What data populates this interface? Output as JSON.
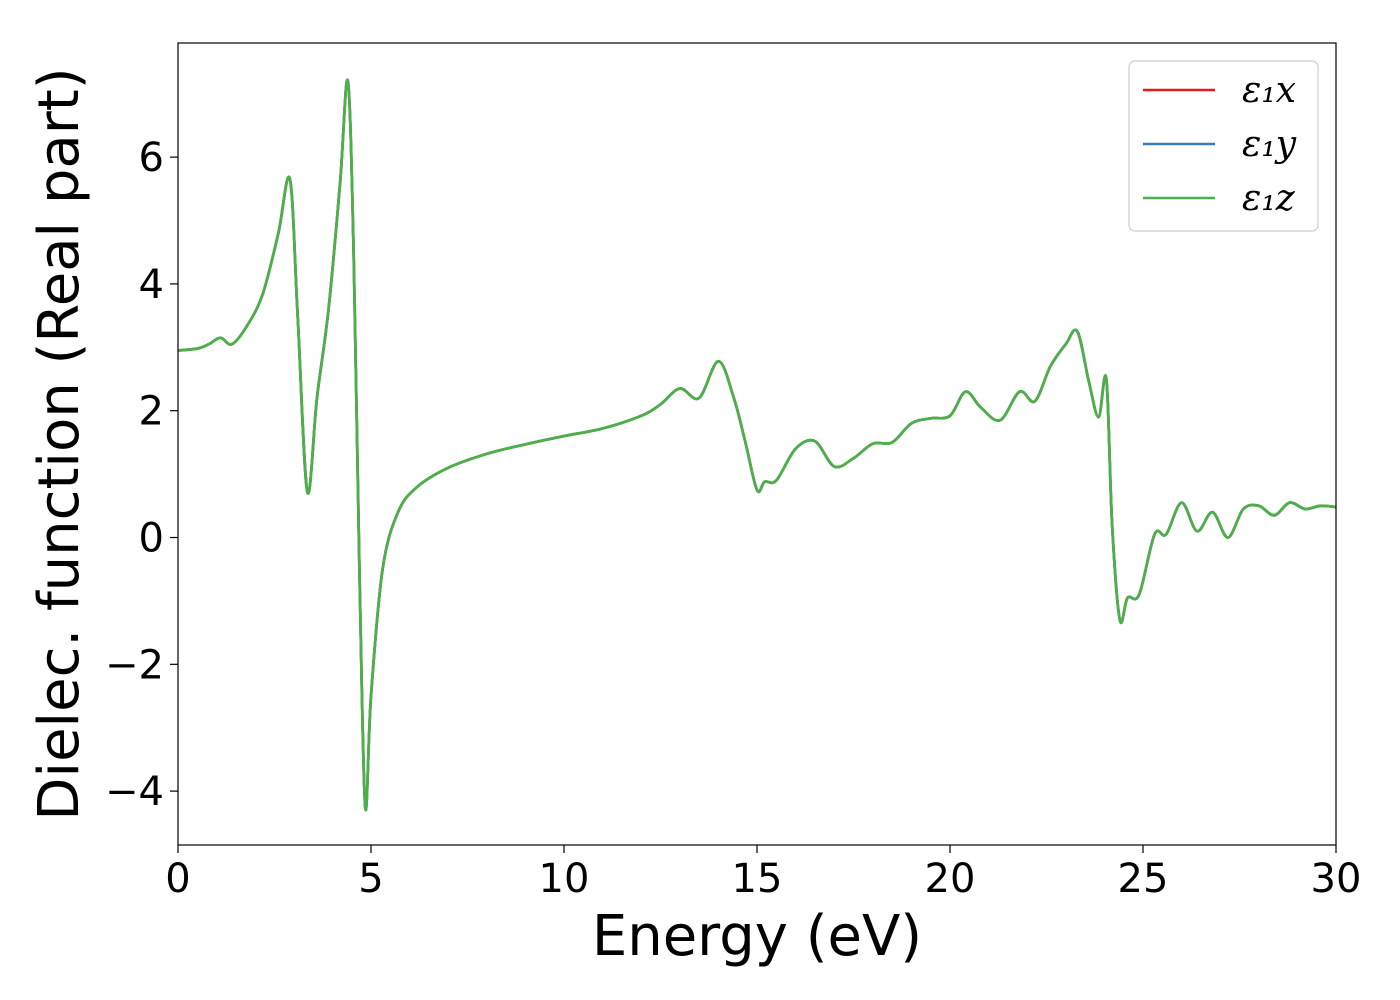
{
  "chart_data": {
    "type": "line",
    "xlabel": "Energy (eV)",
    "ylabel": "Dielec. function (Real part)",
    "xlim": [
      0,
      30
    ],
    "ylim": [
      -4.85,
      7.8
    ],
    "xticks": [
      0,
      5,
      10,
      15,
      20,
      25,
      30
    ],
    "yticks": [
      -4,
      -2,
      0,
      2,
      4,
      6
    ],
    "xtick_labels": [
      "0",
      "5",
      "10",
      "15",
      "20",
      "25",
      "30"
    ],
    "ytick_labels": [
      "−4",
      "−2",
      "0",
      "2",
      "4",
      "6"
    ],
    "grid": false,
    "legend_position": "top-right",
    "x": [
      0,
      0.5,
      0.8,
      1.1,
      1.4,
      1.8,
      2.2,
      2.6,
      2.9,
      3.1,
      3.35,
      3.6,
      3.9,
      4.2,
      4.4,
      4.55,
      4.7,
      4.85,
      5.0,
      5.3,
      5.7,
      6.2,
      7.0,
      8.0,
      9.0,
      10.0,
      11.0,
      12.0,
      12.5,
      13.0,
      13.5,
      14.0,
      14.4,
      14.7,
      15.0,
      15.2,
      15.5,
      16.0,
      16.5,
      17.0,
      17.5,
      18.0,
      18.5,
      19.0,
      19.5,
      20.0,
      20.4,
      20.8,
      21.3,
      21.8,
      22.2,
      22.6,
      23.0,
      23.3,
      23.6,
      23.85,
      24.05,
      24.2,
      24.4,
      24.6,
      24.9,
      25.3,
      25.6,
      26.0,
      26.4,
      26.8,
      27.2,
      27.6,
      28.0,
      28.4,
      28.8,
      29.2,
      29.6,
      30.0
    ],
    "series": [
      {
        "name": "ε₁x",
        "color": "#e41a1c",
        "y": [
          2.95,
          2.98,
          3.05,
          3.15,
          3.05,
          3.35,
          3.85,
          4.8,
          5.65,
          3.5,
          0.72,
          2.2,
          3.6,
          5.6,
          7.2,
          4.5,
          -0.5,
          -4.25,
          -2.5,
          -0.5,
          0.4,
          0.8,
          1.1,
          1.32,
          1.47,
          1.6,
          1.72,
          1.92,
          2.1,
          2.35,
          2.2,
          2.78,
          2.2,
          1.5,
          0.75,
          0.88,
          0.9,
          1.4,
          1.52,
          1.12,
          1.25,
          1.48,
          1.5,
          1.8,
          1.88,
          1.92,
          2.3,
          2.05,
          1.85,
          2.3,
          2.15,
          2.7,
          3.05,
          3.25,
          2.45,
          1.9,
          2.5,
          0.2,
          -1.3,
          -0.95,
          -0.9,
          0.05,
          0.05,
          0.55,
          0.1,
          0.4,
          0.0,
          0.45,
          0.5,
          0.35,
          0.55,
          0.45,
          0.5,
          0.48
        ]
      },
      {
        "name": "ε₁y",
        "color": "#377eb8",
        "y": [
          2.95,
          2.98,
          3.05,
          3.15,
          3.05,
          3.35,
          3.85,
          4.8,
          5.65,
          3.5,
          0.72,
          2.2,
          3.6,
          5.6,
          7.2,
          4.5,
          -0.5,
          -4.25,
          -2.5,
          -0.5,
          0.4,
          0.8,
          1.1,
          1.32,
          1.47,
          1.6,
          1.72,
          1.92,
          2.1,
          2.35,
          2.2,
          2.78,
          2.2,
          1.5,
          0.75,
          0.88,
          0.9,
          1.4,
          1.52,
          1.12,
          1.25,
          1.48,
          1.5,
          1.8,
          1.88,
          1.92,
          2.3,
          2.05,
          1.85,
          2.3,
          2.15,
          2.7,
          3.05,
          3.25,
          2.45,
          1.9,
          2.5,
          0.2,
          -1.3,
          -0.95,
          -0.9,
          0.05,
          0.05,
          0.55,
          0.1,
          0.4,
          0.0,
          0.45,
          0.5,
          0.35,
          0.55,
          0.45,
          0.5,
          0.48
        ]
      },
      {
        "name": "ε₁z",
        "color": "#4daf4a",
        "y": [
          2.95,
          2.98,
          3.05,
          3.15,
          3.05,
          3.35,
          3.85,
          4.8,
          5.65,
          3.5,
          0.72,
          2.2,
          3.6,
          5.6,
          7.2,
          4.5,
          -0.5,
          -4.25,
          -2.5,
          -0.5,
          0.4,
          0.8,
          1.1,
          1.32,
          1.47,
          1.6,
          1.72,
          1.92,
          2.1,
          2.35,
          2.2,
          2.78,
          2.2,
          1.5,
          0.75,
          0.88,
          0.9,
          1.4,
          1.52,
          1.12,
          1.25,
          1.48,
          1.5,
          1.8,
          1.88,
          1.92,
          2.3,
          2.05,
          1.85,
          2.3,
          2.15,
          2.7,
          3.05,
          3.25,
          2.45,
          1.9,
          2.5,
          0.2,
          -1.3,
          -0.95,
          -0.9,
          0.05,
          0.05,
          0.55,
          0.1,
          0.4,
          0.0,
          0.45,
          0.5,
          0.35,
          0.55,
          0.45,
          0.5,
          0.48
        ]
      }
    ]
  }
}
